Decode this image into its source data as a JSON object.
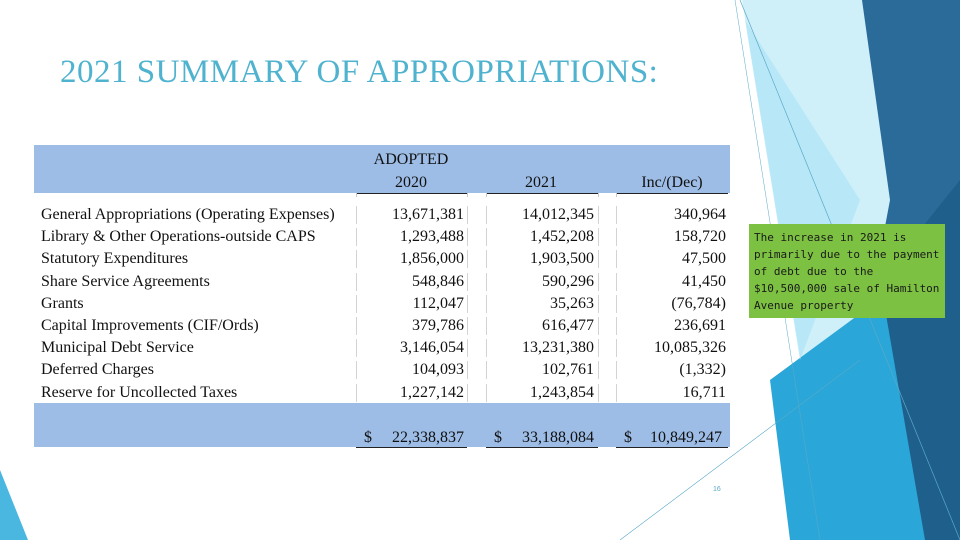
{
  "slide": {
    "title": "2021 SUMMARY OF APPROPRIATIONS:",
    "page_number": "16",
    "note": "The increase in 2021 is primarily due to the payment of debt due to the $10,500,000 sale of Hamilton Avenue property",
    "colors": {
      "title": "#4fb3cf",
      "table_band": "#9dbde6",
      "note_bg": "#7cc142",
      "deco_dark": "#2a6b9a",
      "deco_mid": "#2aa7d8",
      "deco_light": "#76d0ef"
    }
  },
  "table": {
    "headers": {
      "adopted": "ADOPTED",
      "col_2020": "2020",
      "col_2021": "2021",
      "col_inc": "Inc/(Dec)"
    },
    "rows": [
      {
        "name": "General Appropriations (Operating Expenses)",
        "v2020": "13,671,381",
        "v2021": "14,012,345",
        "inc": "340,964"
      },
      {
        "name": "Library & Other Operations-outside CAPS",
        "v2020": "1,293,488",
        "v2021": "1,452,208",
        "inc": "158,720"
      },
      {
        "name": "Statutory Expenditures",
        "v2020": "1,856,000",
        "v2021": "1,903,500",
        "inc": "47,500"
      },
      {
        "name": "Share Service Agreements",
        "v2020": "548,846",
        "v2021": "590,296",
        "inc": "41,450"
      },
      {
        "name": "Grants",
        "v2020": "112,047",
        "v2021": "35,263",
        "inc": "(76,784)"
      },
      {
        "name": "Capital Improvements (CIF/Ords)",
        "v2020": "379,786",
        "v2021": "616,477",
        "inc": "236,691"
      },
      {
        "name": "Municipal Debt Service",
        "v2020": "3,146,054",
        "v2021": "13,231,380",
        "inc": "10,085,326"
      },
      {
        "name": "Deferred Charges",
        "v2020": "104,093",
        "v2021": "102,761",
        "inc": "(1,332)"
      },
      {
        "name": "Reserve for Uncollected Taxes",
        "v2020": "1,227,142",
        "v2021": "1,243,854",
        "inc": "16,711"
      }
    ],
    "totals": {
      "currency": "$",
      "t2020": "22,338,837",
      "t2021": "33,188,084",
      "tinc": "10,849,247"
    }
  }
}
